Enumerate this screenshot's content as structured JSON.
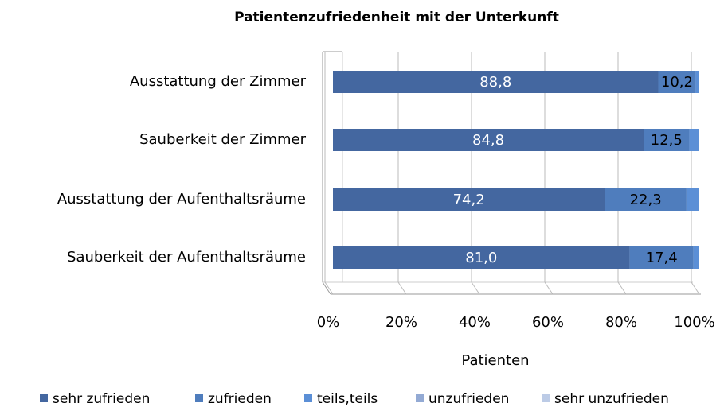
{
  "chart_data": {
    "type": "stacked_barh",
    "title": "Patientenzufriedenheit mit der Unterkunft",
    "x_label": "Patienten",
    "categories": [
      "Ausstattung der Zimmer",
      "Sauberkeit der Zimmer",
      "Ausstattung der Aufenthaltsräume",
      "Sauberkeit der Aufenthaltsräume"
    ],
    "series": [
      {
        "name": "sehr zufrieden",
        "color": "#4467a0",
        "values": [
          88.8,
          84.8,
          74.2,
          81.0
        ],
        "value_labels": [
          "88,8",
          "84,8",
          "74,2",
          "81,0"
        ]
      },
      {
        "name": "zufrieden",
        "color": "#4f7dbd",
        "values": [
          10.2,
          12.5,
          22.3,
          17.4
        ],
        "value_labels": [
          "10,2",
          "12,5",
          "22,3",
          "17,4"
        ]
      },
      {
        "name": "teils,teils",
        "color": "#5b8fd6",
        "values": [
          1.0,
          2.7,
          3.5,
          1.6
        ]
      },
      {
        "name": "unzufrieden",
        "color": "#93aad4",
        "values": [
          0,
          0,
          0,
          0
        ]
      },
      {
        "name": "sehr unzufrieden",
        "color": "#bccbe6",
        "values": [
          0,
          0,
          0,
          0
        ]
      }
    ],
    "xlim": [
      0,
      100
    ],
    "xticks": [
      {
        "value": 0,
        "label": "0%"
      },
      {
        "value": 20,
        "label": "20%"
      },
      {
        "value": 40,
        "label": "40%"
      },
      {
        "value": 60,
        "label": "60%"
      },
      {
        "value": 80,
        "label": "80%"
      },
      {
        "value": 100,
        "label": "100%"
      }
    ],
    "grid": true,
    "legend": "bottom"
  }
}
